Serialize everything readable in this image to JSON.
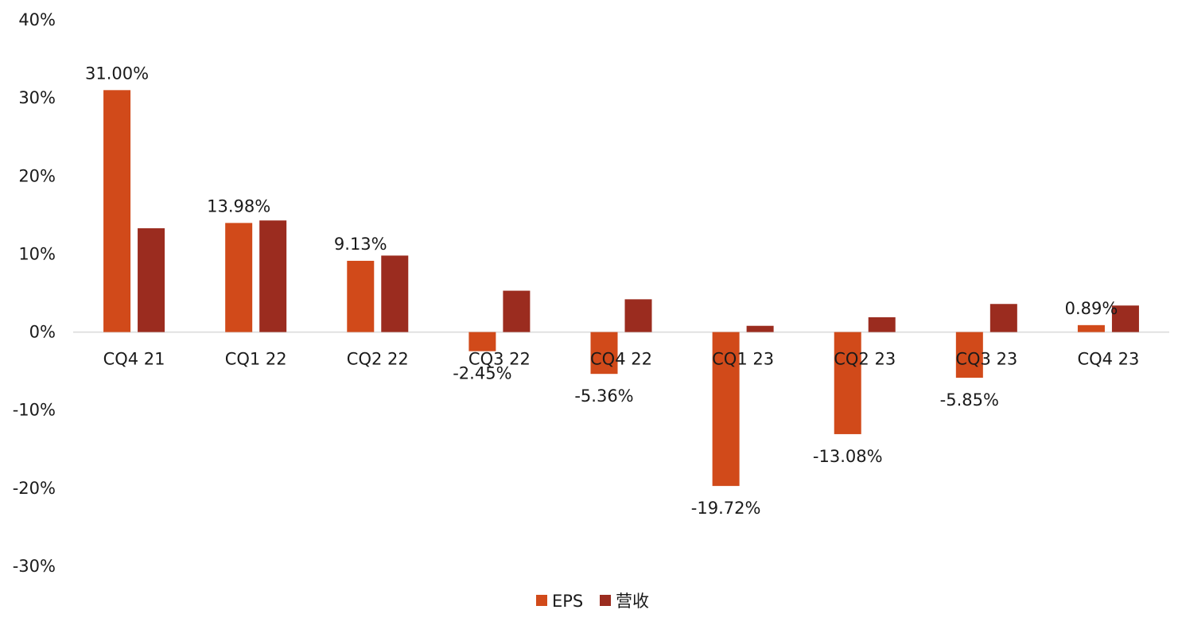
{
  "chart_data": {
    "type": "bar",
    "title": "",
    "xlabel": "",
    "ylabel": "",
    "categories": [
      "CQ4 21",
      "CQ1 22",
      "CQ2 22",
      "CQ3 22",
      "CQ4 22",
      "CQ1 23",
      "CQ2 23",
      "CQ3 23",
      "CQ4 23"
    ],
    "series": [
      {
        "name": "EPS",
        "color": "#D14A1A",
        "values": [
          31.0,
          13.98,
          9.13,
          -2.45,
          -5.36,
          -19.72,
          -13.08,
          -5.85,
          0.89
        ],
        "data_labels": [
          "31.00%",
          "13.98%",
          "9.13%",
          "-2.45%",
          "-5.36%",
          "-19.72%",
          "-13.08%",
          "-5.85%",
          "0.89%"
        ]
      },
      {
        "name": "营收",
        "color": "#9B2C1F",
        "values": [
          13.3,
          14.3,
          9.8,
          5.3,
          4.2,
          0.8,
          1.9,
          3.6,
          3.4
        ]
      }
    ],
    "ylim": [
      -30,
      40
    ],
    "yticks": [
      -30,
      -20,
      -10,
      0,
      10,
      20,
      30,
      40
    ],
    "ytick_labels": [
      "-30%",
      "-20%",
      "-10%",
      "0%",
      "10%",
      "20%",
      "30%",
      "40%"
    ],
    "grid": false,
    "legend": {
      "position": "bottom"
    }
  }
}
